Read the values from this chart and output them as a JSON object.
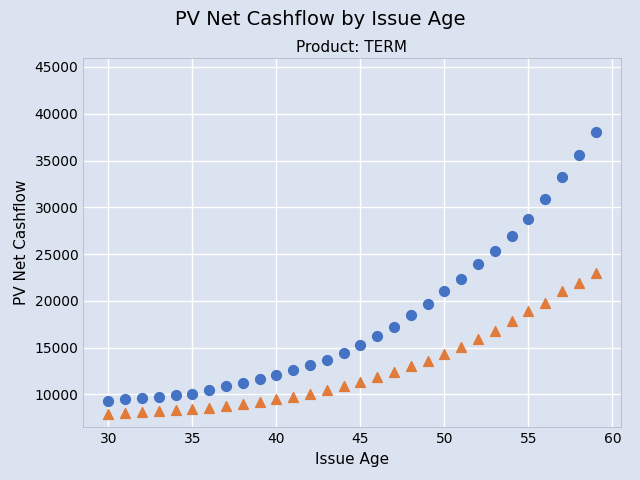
{
  "title": "PV Net Cashflow by Issue Age",
  "subtitle": "Product: TERM",
  "xlabel": "Issue Age",
  "ylabel": "PV Net Cashflow",
  "title_fontsize": 14,
  "subtitle_fontsize": 11,
  "label_fontsize": 11,
  "axes_bg_color": "#dce3f0",
  "fig_bg_color": "#dce3f0",
  "blue_series": {
    "x": [
      30,
      31,
      32,
      33,
      34,
      35,
      36,
      37,
      38,
      39,
      40,
      41,
      42,
      43,
      44,
      45,
      46,
      47,
      48,
      49,
      50,
      51,
      52,
      53,
      54,
      55,
      56,
      57,
      58,
      59
    ],
    "y": [
      9300,
      9500,
      9650,
      9750,
      9950,
      10100,
      10450,
      10850,
      11200,
      11700,
      12100,
      12600,
      13100,
      13700,
      14400,
      15300,
      16300,
      17200,
      18500,
      19700,
      21100,
      22300,
      23900,
      25300,
      26900,
      28800,
      30900,
      33200,
      35600,
      38100
    ],
    "color": "#4472c4",
    "marker": "o",
    "size": 50
  },
  "orange_series": {
    "x": [
      30,
      31,
      32,
      33,
      34,
      35,
      36,
      37,
      38,
      39,
      40,
      41,
      42,
      43,
      44,
      45,
      46,
      47,
      48,
      49,
      50,
      51,
      52,
      53,
      54,
      55,
      56,
      57,
      58,
      59
    ],
    "y": [
      7900,
      8050,
      8150,
      8250,
      8350,
      8450,
      8600,
      8750,
      9000,
      9200,
      9500,
      9750,
      10100,
      10450,
      10900,
      11350,
      11900,
      12400,
      13000,
      13600,
      14300,
      15100,
      15900,
      16800,
      17800,
      18900,
      19800,
      21100,
      21900,
      23000
    ],
    "color": "#e07b39",
    "marker": "^",
    "size": 50
  },
  "xlim": [
    28.5,
    60.5
  ],
  "ylim": [
    6500,
    46000
  ],
  "xticks": [
    30,
    35,
    40,
    45,
    50,
    55,
    60
  ],
  "yticks": [
    10000,
    15000,
    20000,
    25000,
    30000,
    35000,
    40000,
    45000
  ],
  "grid_color": "#ffffff",
  "grid_linewidth": 1.0
}
